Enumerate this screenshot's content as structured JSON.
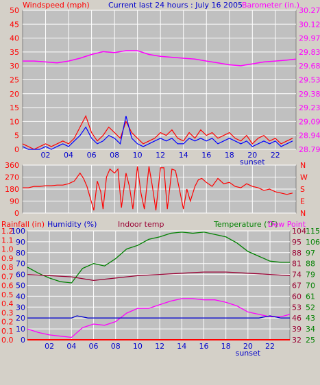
{
  "colors": {
    "background": "#d4d0c8",
    "plot": "#c0c0c0",
    "grid": "#ffffff",
    "wind": "#ff0000",
    "gust": "#0000ff",
    "barometer": "#ff00ff",
    "direction": "#ff0000",
    "rainfall": "#ff0000",
    "humidity": "#0000cc",
    "indoor_temp": "#990033",
    "temperature": "#008000",
    "dew_point": "#ff00ff"
  },
  "chart_data": [
    {
      "type": "line",
      "title": "Current last 24 hours : July 16 2005",
      "left_axis_label": "Windspeed (mph)",
      "right_axis_label": "Barometer (in.)",
      "xticks": [
        "02",
        "04",
        "06",
        "08",
        "10",
        "12",
        "14",
        "16",
        "18",
        "20",
        "22"
      ],
      "xtick_hours": [
        2,
        4,
        6,
        8,
        10,
        12,
        14,
        16,
        18,
        20,
        22
      ],
      "sunset_label": "sunset",
      "sunset_hour": 20,
      "x_range": [
        0,
        23.8
      ],
      "ylim_left": [
        0,
        50
      ],
      "left_ticks": [
        "0",
        "5",
        "10",
        "15",
        "20",
        "25",
        "30",
        "35",
        "40",
        "45",
        "50"
      ],
      "ylim_right": [
        28.79,
        30.27
      ],
      "right_ticks": [
        "28.79",
        "28.94",
        "29.09",
        "29.23",
        "29.38",
        "29.53",
        "29.68",
        "29.83",
        "29.97",
        "30.12",
        "30.27"
      ],
      "series": [
        {
          "name": "Windspeed",
          "axis": "left",
          "x": [
            0,
            0.5,
            1,
            1.5,
            2,
            2.5,
            3,
            3.5,
            4,
            4.5,
            5,
            5.5,
            6,
            6.5,
            7,
            7.5,
            8,
            8.5,
            9,
            9.5,
            10,
            10.5,
            11,
            11.5,
            12,
            12.5,
            13,
            13.5,
            14,
            14.5,
            15,
            15.5,
            16,
            16.5,
            17,
            17.5,
            18,
            18.5,
            19,
            19.5,
            20,
            20.5,
            21,
            21.5,
            22,
            22.5,
            23,
            23.5
          ],
          "y": [
            2,
            1,
            0,
            1,
            2,
            1,
            2,
            3,
            2,
            4,
            8,
            12,
            6,
            3,
            5,
            8,
            6,
            4,
            10,
            6,
            4,
            2,
            3,
            4,
            6,
            5,
            7,
            4,
            3,
            6,
            4,
            7,
            5,
            6,
            4,
            5,
            6,
            4,
            3,
            5,
            2,
            4,
            5,
            3,
            4,
            2,
            3,
            4
          ]
        },
        {
          "name": "Wind gust",
          "axis": "left",
          "x": [
            0,
            0.5,
            1,
            1.5,
            2,
            2.5,
            3,
            3.5,
            4,
            4.5,
            5,
            5.5,
            6,
            6.5,
            7,
            7.5,
            8,
            8.5,
            9,
            9.5,
            10,
            10.5,
            11,
            11.5,
            12,
            12.5,
            13,
            13.5,
            14,
            14.5,
            15,
            15.5,
            16,
            16.5,
            17,
            17.5,
            18,
            18.5,
            19,
            19.5,
            20,
            20.5,
            21,
            21.5,
            22,
            22.5,
            23,
            23.5
          ],
          "y": [
            1,
            0,
            0,
            0,
            1,
            0,
            1,
            2,
            1,
            3,
            5,
            8,
            4,
            2,
            3,
            5,
            4,
            2,
            12,
            4,
            2,
            1,
            2,
            3,
            4,
            3,
            4,
            2,
            2,
            4,
            3,
            4,
            3,
            4,
            2,
            3,
            4,
            3,
            2,
            3,
            1,
            2,
            3,
            2,
            3,
            1,
            2,
            3
          ]
        },
        {
          "name": "Barometer",
          "axis": "right",
          "x": [
            0,
            1,
            2,
            3,
            4,
            5,
            6,
            7,
            8,
            9,
            10,
            11,
            12,
            13,
            14,
            15,
            16,
            17,
            18,
            19,
            20,
            21,
            22,
            23,
            23.8
          ],
          "y": [
            29.73,
            29.73,
            29.72,
            29.71,
            29.73,
            29.76,
            29.8,
            29.83,
            29.82,
            29.84,
            29.84,
            29.8,
            29.78,
            29.77,
            29.76,
            29.75,
            29.73,
            29.71,
            29.69,
            29.68,
            29.7,
            29.72,
            29.73,
            29.74,
            29.75
          ]
        }
      ]
    },
    {
      "type": "line",
      "ylim": [
        0,
        360
      ],
      "left_ticks": [
        "0",
        "90",
        "180",
        "270",
        "360"
      ],
      "right_labels": [
        "N",
        "E",
        "S",
        "W",
        "N"
      ],
      "xticks": [
        "02",
        "04",
        "06",
        "08",
        "10",
        "12",
        "14",
        "16",
        "18",
        "20",
        "22"
      ],
      "series": [
        {
          "name": "Wind direction",
          "x": [
            0,
            0.5,
            1,
            1.5,
            2,
            2.5,
            3,
            3.5,
            4,
            4.5,
            5,
            5.3,
            5.6,
            6,
            6.2,
            6.5,
            6.8,
            7,
            7.3,
            7.6,
            8,
            8.3,
            8.6,
            9,
            9.3,
            9.6,
            10,
            10.3,
            10.6,
            11,
            11.3,
            11.6,
            12,
            12.3,
            12.6,
            13,
            13.3,
            13.6,
            14,
            14.3,
            14.6,
            15,
            15.3,
            15.6,
            16,
            16.5,
            17,
            17.5,
            18,
            18.5,
            19,
            19.5,
            20,
            20.5,
            21,
            21.5,
            22,
            22.5,
            23,
            23.5
          ],
          "y": [
            190,
            190,
            200,
            200,
            205,
            205,
            210,
            210,
            220,
            240,
            300,
            260,
            200,
            80,
            20,
            240,
            160,
            30,
            270,
            330,
            300,
            330,
            40,
            300,
            200,
            30,
            350,
            150,
            30,
            350,
            200,
            20,
            340,
            340,
            30,
            330,
            320,
            200,
            30,
            180,
            90,
            200,
            250,
            260,
            230,
            200,
            260,
            220,
            230,
            200,
            190,
            220,
            200,
            190,
            170,
            180,
            160,
            150,
            140,
            150
          ]
        }
      ]
    },
    {
      "type": "line",
      "labels": {
        "rainfall": "Rainfall (in)",
        "humidity": "Humidity (%)",
        "indoor": "Indoor temp",
        "temperature": "Temperature (°F)",
        "dew_point": "Dew Point"
      },
      "rain_ticks": [
        "0.0",
        "0.1",
        "0.2",
        "0.3",
        "0.4",
        "0.5",
        "0.6",
        "0.7",
        "0.8",
        "0.9",
        "1.0",
        "1.1",
        "1.2"
      ],
      "rain_range": [
        0,
        1.2
      ],
      "humidity_ticks": [
        "0",
        "10",
        "20",
        "30",
        "40",
        "50",
        "60",
        "70",
        "80",
        "90",
        "100"
      ],
      "humidity_range": [
        0,
        100
      ],
      "temp_ticks_inner": [
        "25",
        "34",
        "43",
        "52",
        "61",
        "70",
        "79",
        "88",
        "97",
        "106",
        "115"
      ],
      "temp_ticks_outer": [
        "32",
        "39",
        "46",
        "53",
        "60",
        "67",
        "74",
        "81",
        "88",
        "95",
        "104"
      ],
      "temp_range": [
        25,
        115
      ],
      "xticks": [
        "02",
        "04",
        "06",
        "08",
        "10",
        "12",
        "14",
        "16",
        "18",
        "20",
        "22"
      ],
      "sunset_label": "sunset",
      "sunset_hour": 20,
      "series": [
        {
          "name": "Temperature",
          "scale": "temp",
          "x": [
            0,
            1,
            2,
            3,
            4,
            5,
            6,
            7,
            8,
            9,
            10,
            11,
            12,
            13,
            14,
            15,
            16,
            17,
            18,
            19,
            20,
            21,
            22,
            23,
            23.8
          ],
          "y": [
            85,
            80,
            76,
            73,
            72,
            84,
            88,
            86,
            92,
            100,
            103,
            108,
            110,
            113,
            114,
            113,
            114,
            112,
            110,
            105,
            98,
            94,
            90,
            89,
            89
          ]
        },
        {
          "name": "Indoor temp",
          "scale": "temp",
          "x": [
            0,
            2,
            4,
            6,
            8,
            10,
            12,
            14,
            16,
            18,
            20,
            22,
            23.8
          ],
          "y": [
            79,
            78,
            77,
            74,
            76,
            78,
            79,
            80,
            81,
            81,
            80,
            79,
            78
          ]
        },
        {
          "name": "Dew Point",
          "scale": "temp",
          "x": [
            0,
            1,
            2,
            3,
            4,
            5,
            6,
            7,
            8,
            9,
            10,
            11,
            12,
            13,
            14,
            15,
            16,
            17,
            18,
            19,
            20,
            21,
            22,
            23,
            23.8
          ],
          "y": [
            34,
            31,
            29,
            28,
            27,
            35,
            38,
            37,
            40,
            47,
            51,
            51,
            54,
            57,
            59,
            59,
            58,
            58,
            56,
            53,
            48,
            46,
            44,
            44,
            46
          ]
        },
        {
          "name": "Humidity",
          "scale": "humidity",
          "x": [
            0,
            1,
            2,
            3,
            4,
            4.5,
            5,
            5.5,
            6,
            8,
            10,
            12,
            14,
            16,
            18,
            20,
            21,
            21.5,
            22,
            22.5,
            23,
            23.8
          ],
          "y": [
            20,
            20,
            20,
            20,
            20,
            22,
            21,
            20,
            20,
            20,
            20,
            20,
            20,
            20,
            20,
            20,
            20,
            21,
            22,
            21,
            20,
            20
          ]
        },
        {
          "name": "Rainfall",
          "scale": "rain",
          "x": [
            0,
            23.8
          ],
          "y": [
            0,
            0
          ]
        }
      ]
    }
  ]
}
